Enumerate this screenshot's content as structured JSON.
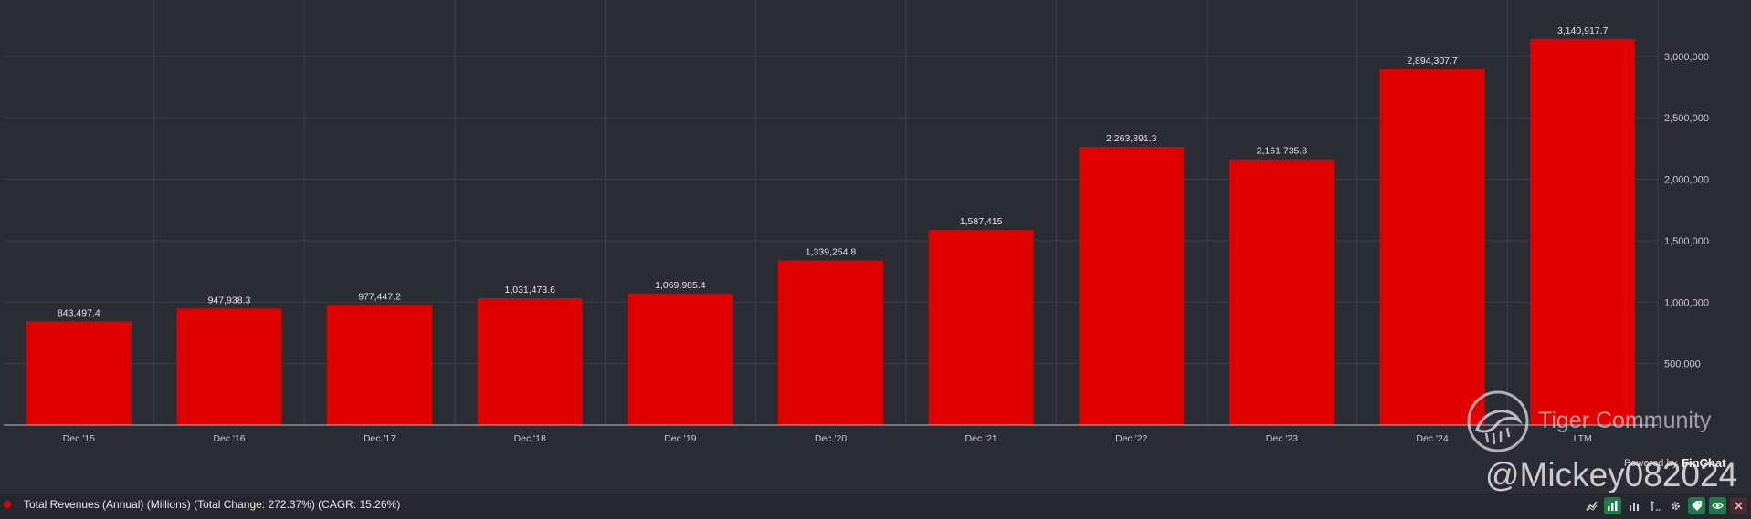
{
  "chart_data": {
    "type": "bar",
    "categories": [
      "Dec '15",
      "Dec '16",
      "Dec '17",
      "Dec '18",
      "Dec '19",
      "Dec '20",
      "Dec '21",
      "Dec '22",
      "Dec '23",
      "Dec '24",
      "LTM"
    ],
    "values": [
      843497.4,
      947938.3,
      977447.2,
      1031473.6,
      1069985.4,
      1339254.8,
      1587415,
      2263891.3,
      2161735.8,
      2894307.7,
      3140917.7
    ],
    "data_labels": [
      "843,497.4",
      "947,938.3",
      "977,447.2",
      "1,031,473.6",
      "1,069,985.4",
      "1,339,254.8",
      "1,587,415",
      "2,263,891.3",
      "2,161,735.8",
      "2,894,307.7",
      "3,140,917.7"
    ],
    "y_ticks": [
      500000,
      1000000,
      1500000,
      2000000,
      2500000,
      3000000
    ],
    "y_tick_labels": [
      "500,000",
      "1,000,000",
      "1,500,000",
      "2,000,000",
      "2,500,000",
      "3,000,000"
    ],
    "ylim": [
      0,
      3400000
    ],
    "grid": true,
    "bar_color": "#e10000",
    "series": [
      {
        "name": "Total Revenues (Annual) (Millions) (Total Change: 272.37%) (CAGR: 15.26%)",
        "values": [
          843497.4,
          947938.3,
          977447.2,
          1031473.6,
          1069985.4,
          1339254.8,
          1587415,
          2263891.3,
          2161735.8,
          2894307.7,
          3140917.7
        ]
      }
    ]
  },
  "legend": {
    "label": "Total Revenues (Annual) (Millions) (Total Change: 272.37%) (CAGR: 15.26%)",
    "color": "#e10000"
  },
  "toolbar": {
    "icons": [
      "line-chart-icon",
      "bar-chart-icon",
      "bar-chart-small-icon",
      "sort-icon",
      "gear-icon",
      "tag-icon",
      "eye-icon",
      "close-icon"
    ]
  },
  "watermark": {
    "community": "Tiger Community",
    "handle": "@Mickey082024",
    "powered_by": "Powered by",
    "brand": "FinChat"
  },
  "colors": {
    "background": "#2b2d35",
    "grid": "#3d3f47",
    "axis": "#8b8d94",
    "text": "#e4e4e8"
  }
}
